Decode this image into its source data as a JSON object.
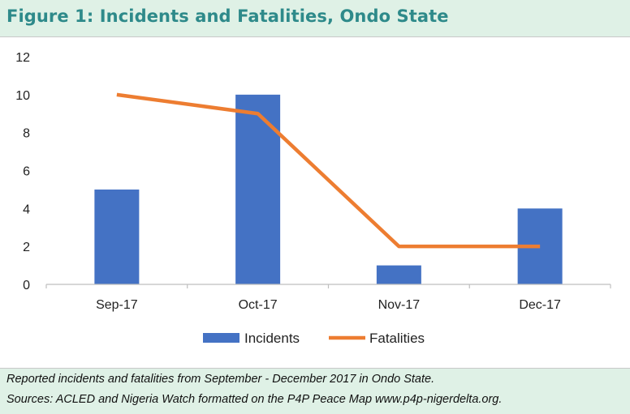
{
  "figure": {
    "title": "Figure 1: Incidents and Fatalities, Ondo State",
    "caption_line1": "Reported incidents and  fatalities from September - December 2017 in Ondo State.",
    "caption_line2": "Sources: ACLED and Nigeria Watch formatted on the P4P Peace Map www.p4p-nigerdelta.org."
  },
  "chart_data": {
    "type": "bar",
    "title": "",
    "xlabel": "",
    "ylabel": "",
    "categories": [
      "Sep-17",
      "Oct-17",
      "Nov-17",
      "Dec-17"
    ],
    "ylim": [
      0,
      12
    ],
    "yticks": [
      0,
      2,
      4,
      6,
      8,
      10,
      12
    ],
    "grid": false,
    "legend_position": "bottom",
    "series": [
      {
        "name": "Incidents",
        "kind": "bar",
        "color": "#4472c4",
        "values": [
          5,
          10,
          1,
          4
        ]
      },
      {
        "name": "Fatalities",
        "kind": "line",
        "color": "#ed7d31",
        "values": [
          10,
          9,
          2,
          2
        ]
      }
    ]
  }
}
